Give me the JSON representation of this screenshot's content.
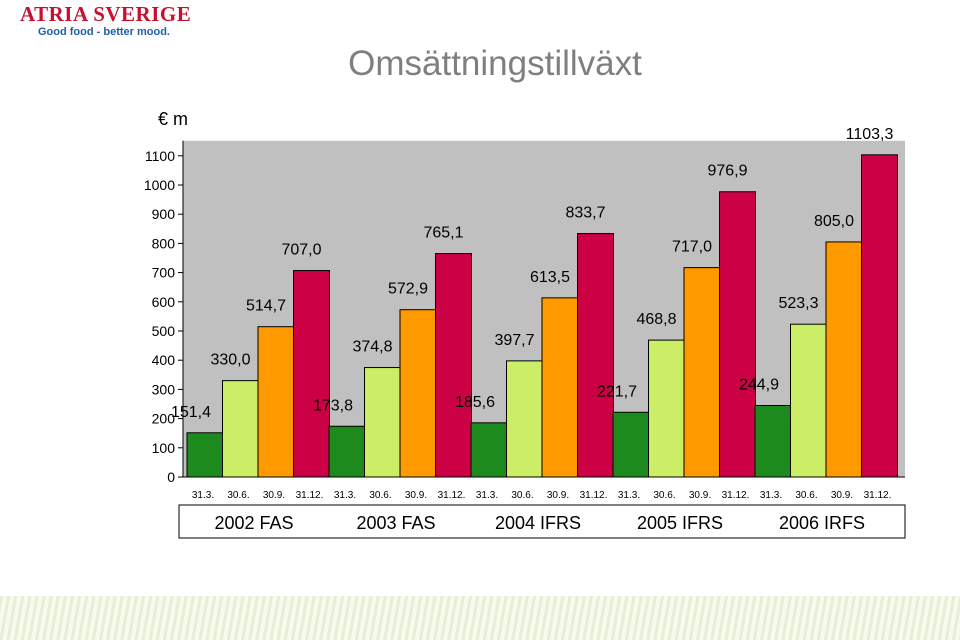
{
  "logo": {
    "brand": "ATRIA SVERIGE",
    "tagline": "Good food - better mood."
  },
  "colors": {
    "q1": "#1c8a1c",
    "q2": "#ccee66",
    "q3": "#ff9900",
    "q4": "#cc0044",
    "plot_bg": "#c0c0c0"
  },
  "chart_data": {
    "type": "bar",
    "title": "Omsättningstillväxt",
    "ylabel": "€ m",
    "ylim": [
      0,
      1100
    ],
    "yticks": [
      0,
      100,
      200,
      300,
      400,
      500,
      600,
      700,
      800,
      900,
      1000,
      1100
    ],
    "grid": false,
    "groups": [
      {
        "label": "2002 FAS",
        "categories": [
          "31.3.",
          "30.6.",
          "30.9.",
          "31.12."
        ],
        "values": [
          151.4,
          330.0,
          514.7,
          707.0
        ],
        "labels": [
          "151,4",
          "330,0",
          "514,7",
          "707,0"
        ]
      },
      {
        "label": "2003 FAS",
        "categories": [
          "31.3.",
          "30.6.",
          "30.9.",
          "31.12."
        ],
        "values": [
          173.8,
          374.8,
          572.9,
          765.1
        ],
        "labels": [
          "173,8",
          "374,8",
          "572,9",
          "765,1"
        ]
      },
      {
        "label": "2004 IFRS",
        "categories": [
          "31.3.",
          "30.6.",
          "30.9.",
          "31.12."
        ],
        "values": [
          185.6,
          397.7,
          613.5,
          833.7
        ],
        "labels": [
          "185,6",
          "397,7",
          "613,5",
          "833,7"
        ]
      },
      {
        "label": "2005 IFRS",
        "categories": [
          "31.3.",
          "30.6.",
          "30.9.",
          "31.12."
        ],
        "values": [
          221.7,
          468.8,
          717.0,
          976.9
        ],
        "labels": [
          "221,7",
          "468,8",
          "717,0",
          "976,9"
        ]
      },
      {
        "label": "2006 IRFS",
        "categories": [
          "31.3.",
          "30.6.",
          "30.9.",
          "31.12."
        ],
        "values": [
          244.9,
          523.3,
          805.0,
          1103.3
        ],
        "labels": [
          "244,9",
          "523,3",
          "805,0",
          "1103,3"
        ]
      }
    ]
  }
}
